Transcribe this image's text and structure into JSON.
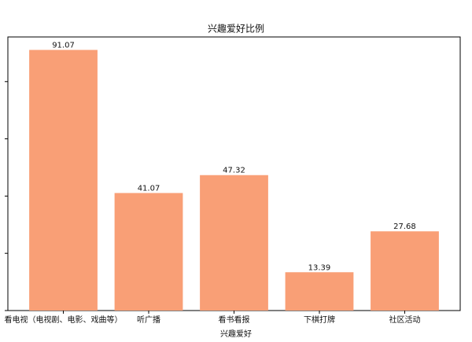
{
  "chart_data": {
    "type": "bar",
    "title": "兴趣爱好比例",
    "x_label": "兴趣爱好",
    "categories": [
      "看电视（电视剧、电影、戏曲等）",
      "听广播",
      "看书看报",
      "下棋打牌",
      "社区活动"
    ],
    "values": [
      91.07,
      41.07,
      47.32,
      13.39,
      27.68
    ],
    "color": "#f99f76",
    "ylim": [
      0,
      95.6
    ],
    "yticks": [
      0,
      20,
      40,
      60,
      80
    ]
  }
}
